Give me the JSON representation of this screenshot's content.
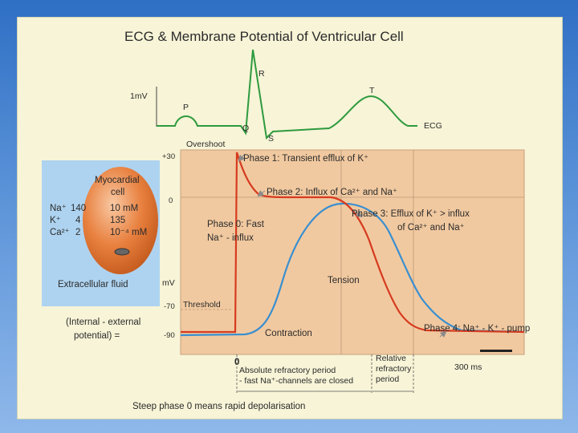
{
  "title": "ECG & Membrane Potential of Ventricular Cell",
  "ecg": {
    "scale_label": "1mV",
    "waves": {
      "p": "P",
      "q": "Q",
      "r": "R",
      "s": "S",
      "t": "T"
    },
    "trace_label": "ECG"
  },
  "potential_axis": {
    "unit": "mV",
    "overshoot": "Overshoot",
    "tick_plus30": "+30",
    "tick_0": "0",
    "tick_minus70": "-70",
    "tick_minus90": "-90",
    "threshold": "Threshold",
    "time_zero": "0"
  },
  "phases": {
    "phase1": "Phase 1: Transient efflux of K⁺",
    "phase2": "Phase 2: Influx of Ca²⁺ and Na⁺",
    "phase3_line1": "Phase 3: Efflux of K⁺ > influx",
    "phase3_line2": "of Ca²⁺ and Na⁺",
    "phase0_line1": "Phase 0: Fast",
    "phase0_line2": "Na⁺ - influx",
    "phase4": "Phase 4: Na⁺ - K⁺ - pump"
  },
  "curves": {
    "tension": "Tension",
    "contraction": "Contraction"
  },
  "cell": {
    "name_line1": "Myocardial",
    "name_line2": "cell",
    "ions": [
      {
        "ion": "Na⁺",
        "outside": "140",
        "inside": "10 mM"
      },
      {
        "ion": "K⁺",
        "outside": "4",
        "inside": "135"
      },
      {
        "ion": "Ca²⁺",
        "outside": "2",
        "inside": "10⁻⁴ mM"
      }
    ],
    "extracellular": "Extracellular fluid"
  },
  "potential_note_line1": "(Internal - external",
  "potential_note_line2": "potential) =",
  "refractory": {
    "absolute_line1": "Absolute refractory period",
    "absolute_line2": "- fast Na⁺-channels are closed",
    "relative_line1": "Relative",
    "relative_line2": "refractory",
    "relative_line3": "period"
  },
  "time_scale": "300 ms",
  "footer": "Steep phase 0 means rapid depolarisation",
  "colors": {
    "ecg_trace": "#2e9a3e",
    "potential_trace": "#d63b1f",
    "tension_trace": "#3a8fd0",
    "plot_background": "#f1c9a0",
    "cell_box": "#aed3f0",
    "cell_fill": "#e8803f"
  }
}
